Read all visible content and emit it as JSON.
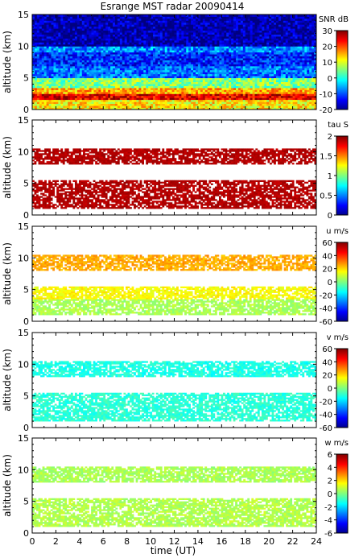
{
  "chart_data": {
    "type": "heatmap",
    "title": "Esrange MST radar 20090414",
    "x": {
      "label": "time (UT)",
      "range": [
        0,
        24
      ],
      "ticks": [
        0,
        2,
        4,
        6,
        8,
        10,
        12,
        14,
        16,
        18,
        20,
        22,
        24
      ]
    },
    "panels": [
      {
        "id": "snr",
        "ylabel": "altitude (km)",
        "yrange": [
          0,
          15
        ],
        "yticks": [
          0,
          5,
          10,
          15
        ],
        "colorbar_label": "SNR dB",
        "colorbar_range": [
          -20,
          30
        ],
        "colorbar_ticks": [
          30,
          20,
          10,
          0,
          -10,
          -20
        ],
        "layers": [
          {
            "alt_range": [
              0,
              1.5
            ],
            "value": 12
          },
          {
            "alt_range": [
              1.5,
              2.5
            ],
            "value": 25
          },
          {
            "alt_range": [
              2.5,
              3.5
            ],
            "value": 15
          },
          {
            "alt_range": [
              3.5,
              5
            ],
            "value": 5
          },
          {
            "alt_range": [
              5,
              7
            ],
            "value": -8
          },
          {
            "alt_range": [
              7,
              9
            ],
            "value": -12
          },
          {
            "alt_range": [
              9,
              10
            ],
            "value": -7
          },
          {
            "alt_range": [
              10,
              15
            ],
            "value": -18
          }
        ]
      },
      {
        "id": "tau",
        "ylabel": "altitude (km)",
        "yrange": [
          0,
          15
        ],
        "yticks": [
          0,
          5,
          10,
          15
        ],
        "colorbar_label": "tau S",
        "colorbar_range": [
          0,
          2
        ],
        "colorbar_ticks": [
          2,
          1.5,
          1,
          0.5,
          0
        ],
        "layers": [
          {
            "alt_range": [
              1,
              5.5
            ],
            "value": 1.95
          },
          {
            "alt_range": [
              8,
              10.5
            ],
            "value": 1.95
          }
        ]
      },
      {
        "id": "u",
        "ylabel": "altitude (km)",
        "yrange": [
          0,
          15
        ],
        "yticks": [
          0,
          5,
          10,
          15
        ],
        "colorbar_label": "u m/s",
        "colorbar_range": [
          -60,
          60
        ],
        "colorbar_ticks": [
          60,
          40,
          20,
          0,
          -20,
          -40,
          -60
        ],
        "layers": [
          {
            "alt_range": [
              1,
              3.5
            ],
            "value": 5
          },
          {
            "alt_range": [
              3.5,
              5.5
            ],
            "value": 15
          },
          {
            "alt_range": [
              8,
              10.5
            ],
            "value": 25
          }
        ]
      },
      {
        "id": "v",
        "ylabel": "altitude (km)",
        "yrange": [
          0,
          15
        ],
        "yticks": [
          0,
          5,
          10,
          15
        ],
        "colorbar_label": "v m/s",
        "colorbar_range": [
          -60,
          60
        ],
        "colorbar_ticks": [
          60,
          40,
          20,
          0,
          -20,
          -40,
          -60
        ],
        "layers": [
          {
            "alt_range": [
              1,
              5.5
            ],
            "value": -10
          },
          {
            "alt_range": [
              8,
              10.5
            ],
            "value": -12
          }
        ]
      },
      {
        "id": "w",
        "ylabel": "altitude (km)",
        "yrange": [
          0,
          15
        ],
        "yticks": [
          0,
          5,
          10,
          15
        ],
        "colorbar_label": "w m/s",
        "colorbar_range": [
          -6,
          6
        ],
        "colorbar_ticks": [
          6,
          4,
          2,
          0,
          -2,
          -4,
          -6
        ],
        "layers": [
          {
            "alt_range": [
              1,
              5.5
            ],
            "value": 0.6
          },
          {
            "alt_range": [
              8,
              10.5
            ],
            "value": 0.5
          }
        ]
      }
    ]
  }
}
